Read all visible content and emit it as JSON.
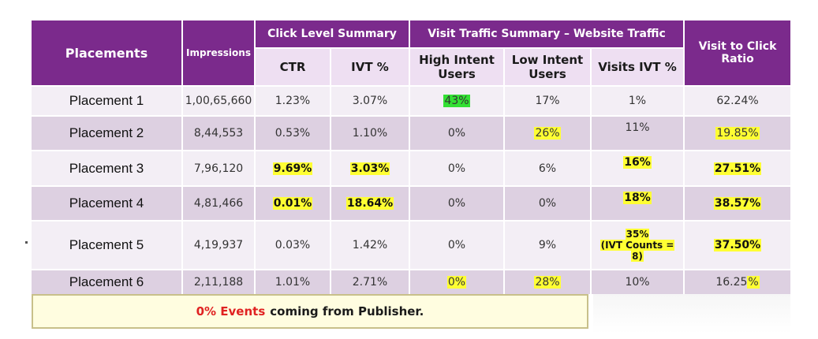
{
  "header": {
    "placements": "Placements",
    "impressions": "Impressions",
    "click_level": "Click Level Summary",
    "visit_traffic": "Visit Traffic Summary – Website Traffic",
    "visit_to_click_line1": "Visit to Click",
    "visit_to_click_line2": "Ratio",
    "ctr": "CTR",
    "ivt": "IVT %",
    "high_intent_line1": "High Intent",
    "high_intent_line2": "Users",
    "low_intent_line1": "Low Intent",
    "low_intent_line2": "Users",
    "visits_ivt": "Visits IVT %"
  },
  "rows": [
    {
      "name": "Placement 1",
      "impressions": "1,00,65,660",
      "ctr": "1.23%",
      "ivt": "3.07%",
      "high": "43%",
      "low": "17%",
      "visits_ivt": "1%",
      "ratio": "62.24%"
    },
    {
      "name": "Placement 2",
      "impressions": "8,44,553",
      "ctr": "0.53%",
      "ivt": "1.10%",
      "high": "0%",
      "low": "26%",
      "visits_ivt": "11%",
      "ratio": "19.85%"
    },
    {
      "name": "Placement 3",
      "impressions": "7,96,120",
      "ctr": "9.69%",
      "ivt": "3.03%",
      "high": "0%",
      "low": "6%",
      "visits_ivt": "16%",
      "ratio": "27.51%"
    },
    {
      "name": "Placement 4",
      "impressions": "4,81,466",
      "ctr": "0.01%",
      "ivt": "18.64%",
      "high": "0%",
      "low": "0%",
      "visits_ivt": "18%",
      "ratio": "38.57%"
    },
    {
      "name": "Placement 5",
      "impressions": "4,19,937",
      "ctr": "0.03%",
      "ivt": "1.42%",
      "high": "0%",
      "low": "9%",
      "visits_ivt_line1": "35%",
      "visits_ivt_line2": "(IVT Counts =",
      "visits_ivt_line3": "8)",
      "ratio": "37.50%"
    },
    {
      "name": "Placement 6",
      "impressions": "2,11,188",
      "ctr": "1.01%",
      "ivt": "2.71%",
      "high": "0%",
      "low": "28%",
      "visits_ivt": "10%",
      "ratio_part1": "16.25",
      "ratio_part2": "%"
    }
  ],
  "note": {
    "highlight": "0% Events",
    "rest": "coming from Publisher."
  },
  "colors": {
    "header_purple": "#7b2a8c",
    "subheader": "#eedff2",
    "highlight_yellow": "#ffff33",
    "highlight_green": "#33e033",
    "alert_red": "#e02222"
  }
}
